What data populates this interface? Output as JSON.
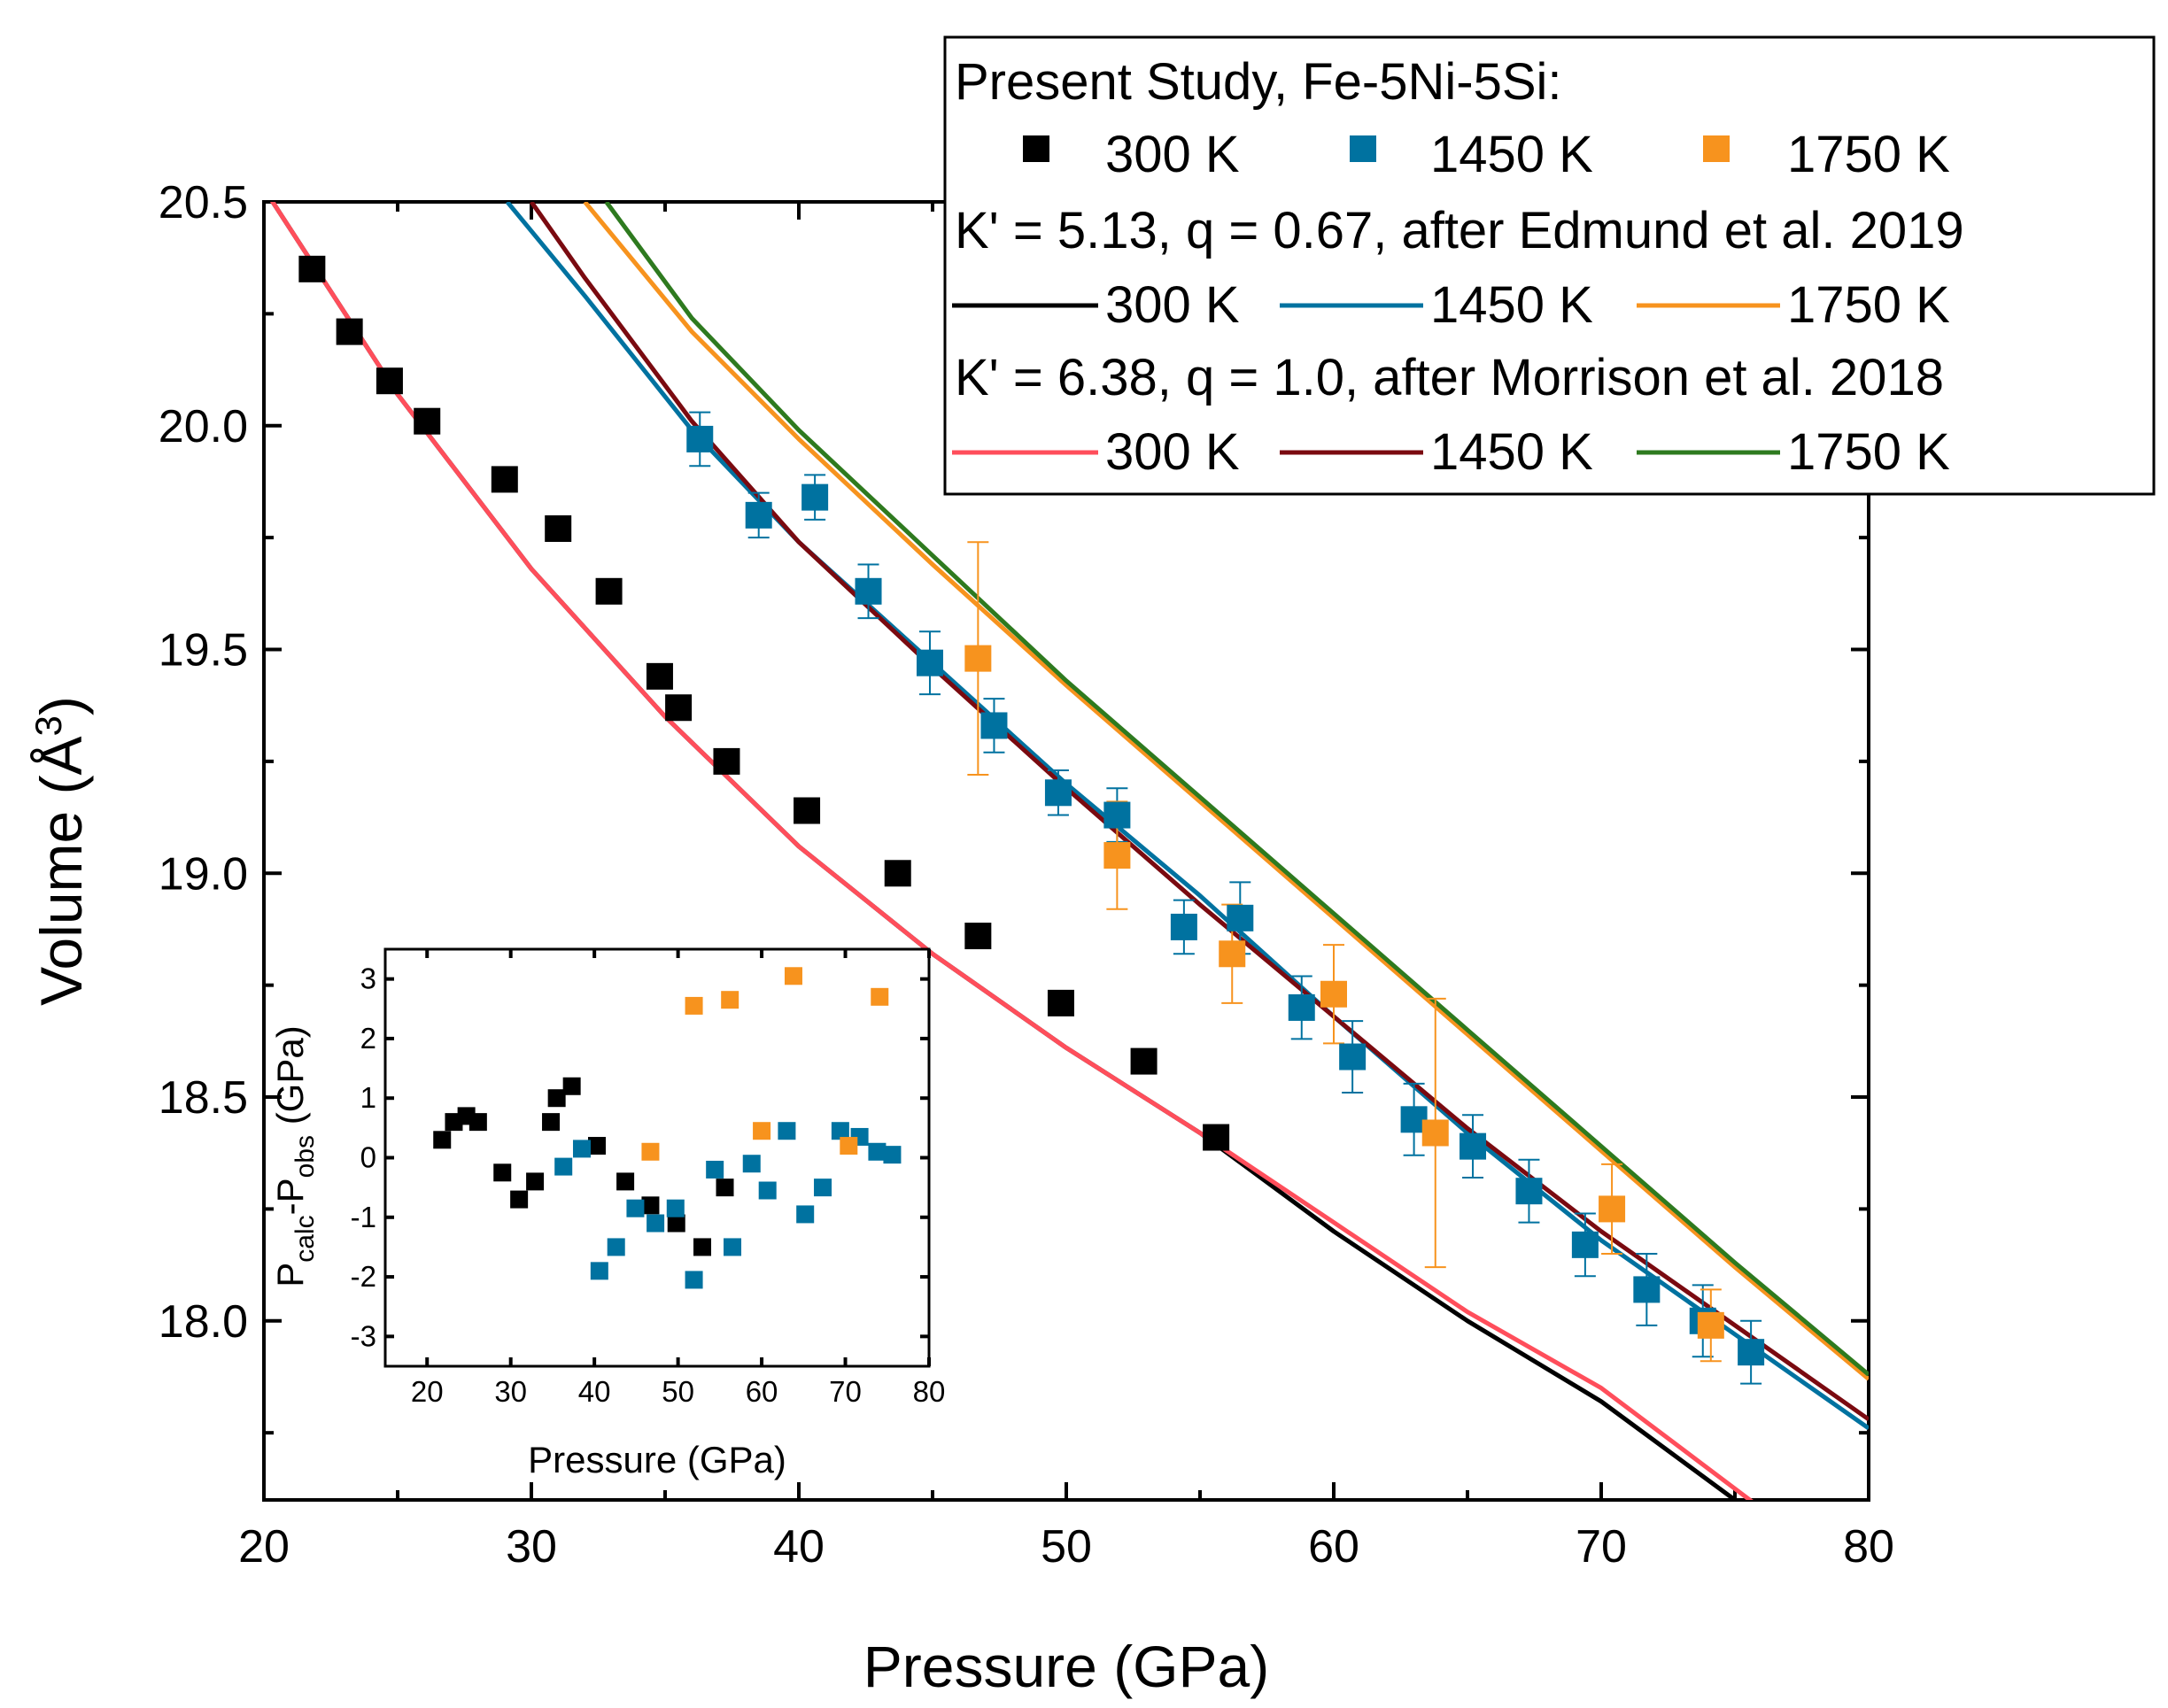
{
  "chart_data": [
    {
      "type": "scatter",
      "xlabel": "Pressure (GPa)",
      "ylabel_main": "Volume (Å",
      "ylabel_sup": "3",
      "ylabel_close": ")",
      "xlim": [
        20,
        80
      ],
      "ylim": [
        17.6,
        20.5
      ],
      "xticks": [
        "20",
        "30",
        "40",
        "50",
        "60",
        "70",
        "80"
      ],
      "xtick_values": [
        20,
        30,
        40,
        50,
        60,
        70,
        80
      ],
      "yticks": [
        "18.0",
        "18.5",
        "19.0",
        "19.5",
        "20.0",
        "20.5"
      ],
      "ytick_values": [
        18.0,
        18.5,
        19.0,
        19.5,
        20.0,
        20.5
      ],
      "legend": {
        "header1": "Present Study, Fe-5Ni-5Si:",
        "header2": "K' = 5.13, q = 0.67, after Edmund et al. 2019",
        "header3": "K' = 6.38, q = 1.0, after Morrison et al. 2018",
        "labels": [
          "300 K",
          "1450 K",
          "1750 K"
        ]
      },
      "series": [
        {
          "name": "300 K",
          "kind": "points",
          "color": "#000000",
          "points": [
            [
              21.8,
              20.35
            ],
            [
              23.2,
              20.21
            ],
            [
              24.7,
              20.1
            ],
            [
              26.1,
              20.01
            ],
            [
              29.0,
              19.88
            ],
            [
              31.0,
              19.77
            ],
            [
              32.9,
              19.63
            ],
            [
              34.8,
              19.44
            ],
            [
              35.5,
              19.37
            ],
            [
              37.3,
              19.25
            ],
            [
              40.3,
              19.14
            ],
            [
              43.7,
              19.0
            ],
            [
              46.7,
              18.86
            ],
            [
              49.8,
              18.71
            ],
            [
              52.9,
              18.58
            ],
            [
              55.6,
              18.41
            ]
          ]
        },
        {
          "name": "1450 K",
          "kind": "points",
          "color": "#0072a0",
          "points": [
            [
              36.3,
              19.97,
              0.06
            ],
            [
              38.5,
              19.8,
              0.05
            ],
            [
              40.6,
              19.84,
              0.05
            ],
            [
              42.6,
              19.63,
              0.06
            ],
            [
              44.9,
              19.47,
              0.07
            ],
            [
              47.3,
              19.33,
              0.06
            ],
            [
              49.7,
              19.18,
              0.05
            ],
            [
              51.9,
              19.13,
              0.06
            ],
            [
              54.4,
              18.88,
              0.06
            ],
            [
              56.5,
              18.9,
              0.08
            ],
            [
              58.8,
              18.7,
              0.07
            ],
            [
              60.7,
              18.59,
              0.08
            ],
            [
              63.0,
              18.45,
              0.08
            ],
            [
              65.2,
              18.39,
              0.07
            ],
            [
              67.3,
              18.29,
              0.07
            ],
            [
              69.4,
              18.17,
              0.07
            ],
            [
              71.7,
              18.07,
              0.08
            ],
            [
              73.8,
              18.0,
              0.08
            ],
            [
              75.6,
              17.93,
              0.07
            ]
          ]
        },
        {
          "name": "1750 K",
          "kind": "points",
          "color": "#f7931e",
          "points": [
            [
              46.7,
              19.48,
              0.26
            ],
            [
              51.9,
              19.04,
              0.12
            ],
            [
              56.2,
              18.82,
              0.11
            ],
            [
              60.0,
              18.73,
              0.11
            ],
            [
              63.8,
              18.42,
              0.3
            ],
            [
              70.4,
              18.25,
              0.1
            ],
            [
              74.1,
              17.99,
              0.08
            ]
          ]
        },
        {
          "name": "300 K (Edmund)",
          "kind": "line",
          "color": "#000000",
          "points": [
            [
              20,
              20.53
            ],
            [
              25,
              20.07
            ],
            [
              30,
              19.68
            ],
            [
              35,
              19.35
            ],
            [
              40,
              19.06
            ],
            [
              45,
              18.82
            ],
            [
              50,
              18.61
            ],
            [
              55,
              18.42
            ],
            [
              60,
              18.2
            ],
            [
              65,
              18.0
            ],
            [
              70,
              17.82
            ],
            [
              75,
              17.6
            ]
          ]
        },
        {
          "name": "1450 K (Edmund)",
          "kind": "line",
          "color": "#0072a0",
          "points": [
            [
              29.1,
              20.5
            ],
            [
              32,
              20.29
            ],
            [
              36,
              19.99
            ],
            [
              40,
              19.74
            ],
            [
              45,
              19.47
            ],
            [
              50,
              19.2
            ],
            [
              55,
              18.95
            ],
            [
              60,
              18.68
            ],
            [
              65,
              18.42
            ],
            [
              70,
              18.18
            ],
            [
              75,
              17.97
            ],
            [
              80,
              17.76
            ]
          ]
        },
        {
          "name": "1750 K (Edmund)",
          "kind": "line",
          "color": "#f7931e",
          "points": [
            [
              32.0,
              20.5
            ],
            [
              36,
              20.21
            ],
            [
              40,
              19.97
            ],
            [
              45,
              19.69
            ],
            [
              50,
              19.42
            ],
            [
              55,
              19.16
            ],
            [
              60,
              18.9
            ],
            [
              65,
              18.64
            ],
            [
              70,
              18.38
            ],
            [
              75,
              18.12
            ],
            [
              80,
              17.87
            ]
          ]
        },
        {
          "name": "300 K (Morrison)",
          "kind": "line",
          "color": "#ff4e5b",
          "points": [
            [
              20,
              20.53
            ],
            [
              25,
              20.07
            ],
            [
              30,
              19.68
            ],
            [
              35,
              19.35
            ],
            [
              40,
              19.06
            ],
            [
              45,
              18.82
            ],
            [
              50,
              18.61
            ],
            [
              55,
              18.42
            ],
            [
              60,
              18.22
            ],
            [
              65,
              18.02
            ],
            [
              70,
              17.85
            ],
            [
              76,
              17.58
            ]
          ]
        },
        {
          "name": "1450 K (Morrison)",
          "kind": "line",
          "color": "#7a0a10",
          "points": [
            [
              30.0,
              20.5
            ],
            [
              32,
              20.33
            ],
            [
              36,
              20.01
            ],
            [
              40,
              19.74
            ],
            [
              45,
              19.46
            ],
            [
              50,
              19.19
            ],
            [
              55,
              18.93
            ],
            [
              60,
              18.68
            ],
            [
              65,
              18.43
            ],
            [
              70,
              18.2
            ],
            [
              75,
              17.99
            ],
            [
              80,
              17.78
            ]
          ]
        },
        {
          "name": "1750 K (Morrison)",
          "kind": "line",
          "color": "#2e7a1f",
          "points": [
            [
              32.8,
              20.5
            ],
            [
              36,
              20.24
            ],
            [
              40,
              19.99
            ],
            [
              45,
              19.71
            ],
            [
              50,
              19.43
            ],
            [
              55,
              19.17
            ],
            [
              60,
              18.91
            ],
            [
              65,
              18.65
            ],
            [
              70,
              18.39
            ],
            [
              75,
              18.13
            ],
            [
              80,
              17.88
            ]
          ]
        }
      ]
    },
    {
      "type": "scatter",
      "name": "residuals inset",
      "xlabel": "Pressure (GPa)",
      "ylabel_main": "P",
      "ylabel_sub1": "calc",
      "ylabel_mid": "-P",
      "ylabel_sub2": "obs",
      "ylabel_end": " (GPa)",
      "xlim": [
        15,
        80
      ],
      "ylim": [
        -3.5,
        3.5
      ],
      "xticks": [
        "20",
        "30",
        "40",
        "50",
        "60",
        "70",
        "80"
      ],
      "xtick_values": [
        20,
        30,
        40,
        50,
        60,
        70,
        80
      ],
      "yticks": [
        "3",
        "2",
        "1",
        "0",
        "-1",
        "-2",
        "-3"
      ],
      "ytick_values": [
        3,
        2,
        1,
        0,
        -1,
        -2,
        -3
      ],
      "series": [
        {
          "name": "300 K",
          "color": "#000000",
          "points": [
            [
              21.8,
              0.3
            ],
            [
              23.2,
              0.6
            ],
            [
              24.7,
              0.7
            ],
            [
              26.1,
              0.6
            ],
            [
              29.0,
              -0.25
            ],
            [
              31.0,
              -0.7
            ],
            [
              32.9,
              -0.4
            ],
            [
              34.8,
              0.6
            ],
            [
              35.5,
              1.0
            ],
            [
              37.3,
              1.2
            ],
            [
              40.3,
              0.2
            ],
            [
              43.7,
              -0.4
            ],
            [
              46.7,
              -0.8
            ],
            [
              49.8,
              -1.1
            ],
            [
              52.9,
              -1.5
            ],
            [
              55.6,
              -0.5
            ]
          ]
        },
        {
          "name": "1450 K",
          "color": "#0072a0",
          "points": [
            [
              36.3,
              -0.15
            ],
            [
              38.5,
              0.15
            ],
            [
              40.6,
              -1.9
            ],
            [
              42.6,
              -1.5
            ],
            [
              44.9,
              -0.85
            ],
            [
              47.3,
              -1.1
            ],
            [
              49.7,
              -0.85
            ],
            [
              51.9,
              -2.05
            ],
            [
              54.4,
              -0.2
            ],
            [
              56.5,
              -1.5
            ],
            [
              58.8,
              -0.1
            ],
            [
              60.7,
              -0.55
            ],
            [
              63.0,
              0.45
            ],
            [
              65.2,
              -0.95
            ],
            [
              67.3,
              -0.5
            ],
            [
              69.4,
              0.45
            ],
            [
              71.7,
              0.35
            ],
            [
              73.8,
              0.1
            ],
            [
              75.6,
              0.05
            ]
          ]
        },
        {
          "name": "1750 K",
          "color": "#f7931e",
          "points": [
            [
              46.7,
              0.1
            ],
            [
              51.9,
              2.55
            ],
            [
              56.2,
              2.65
            ],
            [
              60.0,
              0.45
            ],
            [
              63.8,
              3.05
            ],
            [
              70.4,
              0.2
            ],
            [
              74.1,
              2.7
            ]
          ]
        }
      ]
    }
  ]
}
